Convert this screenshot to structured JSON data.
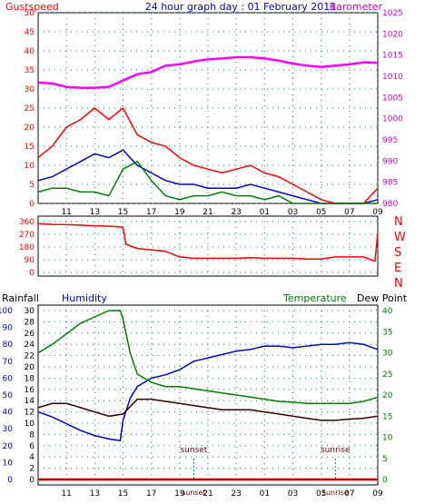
{
  "header": {
    "title": "24 hour graph day : 01 February 2011",
    "left_label": "Gustspeed",
    "right_label": "Barometer"
  },
  "colors": {
    "gust": "#ff0000",
    "wind_avg": "#0000cc",
    "wind_low": "#008000",
    "barometer": "#ff00ff",
    "direction": "#ff0000",
    "rainfall": "#cc0000",
    "humidity": "#0000cc",
    "temperature": "#008000",
    "dewpoint": "#330000",
    "frame": "#000000",
    "grid": "#008080",
    "left_axis": "#ff0000",
    "right_axis": "#cc00cc",
    "rain_axis": "#0000cc",
    "temp_axis": "#008000"
  },
  "panel2": {
    "dir_letters": [
      "N",
      "W",
      "S",
      "E",
      "N"
    ]
  },
  "panel3": {
    "labels": {
      "rainfall": "Rainfall",
      "humidity": "Humidity",
      "temperature": "Temperature",
      "dewpoint": "Dew Point"
    },
    "annotations": {
      "sunset": "sunset",
      "sunrise": "sunrise"
    }
  },
  "chart_data": [
    {
      "type": "line",
      "name": "wind-and-barometer",
      "x_ticks": [
        "11",
        "13",
        "15",
        "17",
        "19",
        "21",
        "23",
        "01",
        "03",
        "05",
        "07",
        "09"
      ],
      "xlim": [
        9,
        33
      ],
      "left_axis": {
        "label": "Gustspeed",
        "ylim": [
          0,
          50
        ],
        "ticks": [
          0,
          5,
          10,
          15,
          20,
          25,
          30,
          35,
          40,
          45,
          50
        ]
      },
      "right_axis": {
        "label": "Barometer",
        "ylim": [
          980,
          1025
        ],
        "ticks": [
          980,
          985,
          990,
          995,
          1000,
          1005,
          1010,
          1015,
          1020,
          1025
        ]
      },
      "grid": true,
      "series": [
        {
          "name": "Gustspeed",
          "axis": "left",
          "x": [
            9,
            10,
            11,
            12,
            13,
            14,
            15,
            16,
            17,
            18,
            19,
            20,
            21,
            22,
            23,
            24,
            25,
            26,
            27,
            28,
            29,
            30,
            31,
            32,
            33
          ],
          "y": [
            12,
            15,
            20,
            22,
            25,
            22,
            25,
            18,
            16,
            15,
            12,
            10,
            9,
            8,
            9,
            10,
            8,
            7,
            5,
            3,
            1,
            0,
            0,
            0,
            4
          ]
        },
        {
          "name": "Average wind",
          "axis": "left",
          "x": [
            9,
            10,
            11,
            12,
            13,
            14,
            15,
            16,
            17,
            18,
            19,
            20,
            21,
            22,
            23,
            24,
            25,
            26,
            27,
            28,
            29,
            30,
            31,
            32,
            33
          ],
          "y": [
            6,
            7,
            9,
            11,
            13,
            12,
            14,
            10,
            8,
            6,
            5,
            5,
            4,
            4,
            4,
            5,
            4,
            3,
            2,
            1,
            0,
            0,
            0,
            0,
            1
          ]
        },
        {
          "name": "Low wind",
          "axis": "left",
          "x": [
            9,
            10,
            11,
            12,
            13,
            14,
            15,
            16,
            17,
            18,
            19,
            20,
            21,
            22,
            23,
            24,
            25,
            26,
            27,
            28,
            29,
            30,
            31,
            32,
            33
          ],
          "y": [
            3,
            4,
            4,
            3,
            3,
            2,
            9,
            11,
            6,
            2,
            1,
            2,
            2,
            3,
            2,
            2,
            1,
            2,
            0,
            0,
            0,
            0,
            0,
            0,
            0
          ]
        },
        {
          "name": "Barometer",
          "axis": "right",
          "x": [
            9,
            10,
            11,
            12,
            13,
            14,
            15,
            16,
            17,
            18,
            19,
            20,
            21,
            22,
            23,
            24,
            25,
            26,
            27,
            28,
            29,
            30,
            31,
            32,
            33
          ],
          "y": [
            1008.5,
            1008.3,
            1007.5,
            1007.3,
            1007.3,
            1007.5,
            1009,
            1010.5,
            1011,
            1012.5,
            1012.8,
            1013.5,
            1014,
            1014.2,
            1014.5,
            1014.5,
            1014.2,
            1013.7,
            1013,
            1012.5,
            1012.2,
            1012.5,
            1012.8,
            1013.3,
            1013.2
          ]
        }
      ]
    },
    {
      "type": "line",
      "name": "wind-direction",
      "x_ticks": [
        "11",
        "13",
        "15",
        "17",
        "19",
        "21",
        "23",
        "01",
        "03",
        "05",
        "07",
        "09"
      ],
      "xlim": [
        9,
        33
      ],
      "ylim": [
        0,
        360
      ],
      "y_ticks": [
        0,
        90,
        180,
        270,
        360
      ],
      "grid": true,
      "series": [
        {
          "name": "Wind direction",
          "x": [
            9,
            10,
            11,
            12,
            13,
            14,
            15,
            15.2,
            16,
            17,
            18,
            19,
            20,
            21,
            22,
            23,
            24,
            25,
            26,
            27,
            28,
            29,
            30,
            31,
            32,
            32.8,
            33
          ],
          "y": [
            345,
            340,
            338,
            335,
            330,
            328,
            320,
            200,
            170,
            160,
            150,
            110,
            100,
            100,
            100,
            100,
            105,
            100,
            100,
            100,
            95,
            95,
            110,
            110,
            110,
            80,
            280
          ]
        }
      ]
    },
    {
      "type": "line",
      "name": "humidity-temperature",
      "x_ticks": [
        "11",
        "13",
        "15",
        "17",
        "19",
        "21",
        "23",
        "01",
        "03",
        "05",
        "07",
        "09"
      ],
      "xlim": [
        9,
        33
      ],
      "rain_axis": {
        "label": "Rainfall",
        "ylim": [
          0,
          30
        ],
        "ticks": [
          0,
          2,
          4,
          6,
          8,
          10,
          12,
          14,
          16,
          18,
          20,
          22,
          24,
          26,
          28,
          30
        ]
      },
      "humidity_axis": {
        "label": "Humidity",
        "ylim": [
          0,
          100
        ],
        "ticks": [
          0,
          10,
          20,
          30,
          40,
          50,
          60,
          70,
          80,
          90,
          100
        ]
      },
      "temp_axis": {
        "label": "Temperature",
        "ylim": [
          0,
          40
        ],
        "ticks": [
          0,
          5,
          10,
          15,
          20,
          25,
          30,
          35,
          40
        ]
      },
      "grid": true,
      "annotations": [
        {
          "text": "sunset",
          "x": 20
        },
        {
          "text": "sunrise",
          "x": 30
        }
      ],
      "series": [
        {
          "name": "Humidity",
          "axis": "humidity",
          "x": [
            9,
            10,
            11,
            12,
            13,
            14,
            14.8,
            15,
            15.5,
            16,
            17,
            18,
            19,
            20,
            21,
            22,
            23,
            24,
            25,
            26,
            27,
            28,
            29,
            30,
            31,
            32,
            33
          ],
          "y": [
            40,
            37,
            33,
            29,
            26,
            24,
            23,
            35,
            48,
            55,
            60,
            62,
            65,
            70,
            72,
            74,
            76,
            77,
            79,
            79,
            78,
            79,
            80,
            80,
            81,
            80,
            77
          ]
        },
        {
          "name": "Temperature",
          "axis": "temp",
          "x": [
            9,
            10,
            11,
            12,
            13,
            14,
            14.8,
            15,
            15.5,
            16,
            17,
            18,
            19,
            20,
            21,
            22,
            23,
            24,
            25,
            26,
            27,
            28,
            29,
            30,
            31,
            32,
            33
          ],
          "y": [
            30,
            32,
            34.5,
            37,
            38.5,
            40,
            40,
            38,
            30,
            25,
            23,
            22,
            22,
            21.5,
            21,
            20.5,
            20,
            19.5,
            19,
            18.5,
            18.3,
            18,
            18,
            18,
            18,
            18.5,
            19.5
          ]
        },
        {
          "name": "Dew Point",
          "axis": "temp",
          "x": [
            9,
            10,
            11,
            12,
            13,
            14,
            15,
            16,
            17,
            18,
            19,
            20,
            21,
            22,
            23,
            24,
            25,
            26,
            27,
            28,
            29,
            30,
            31,
            32,
            33
          ],
          "y": [
            17,
            18,
            18,
            17,
            16,
            15,
            15.5,
            19,
            19,
            18.5,
            18,
            17.5,
            17,
            16.5,
            16.5,
            16.5,
            16,
            15.5,
            15,
            14.5,
            14,
            14,
            14.3,
            14.5,
            15
          ]
        },
        {
          "name": "Rainfall",
          "axis": "rain",
          "x": [
            9,
            33
          ],
          "y": [
            0,
            0
          ]
        }
      ]
    }
  ]
}
